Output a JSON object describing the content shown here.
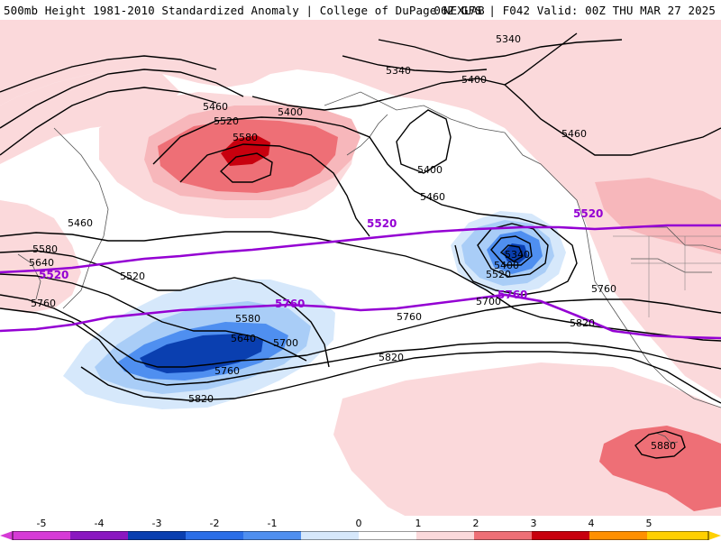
{
  "header": {
    "title": "500mb Height 1981-2010 Standardized Anomaly | College of DuPage NEXLAB",
    "run_info": "06Z GFS | F042 Valid: 00Z THU MAR 27 2025"
  },
  "colors": {
    "anom_neg5": "#d63ad6",
    "anom_neg4": "#8a17c0",
    "anom_neg3": "#0a3fb0",
    "anom_neg2": "#2b6ee8",
    "anom_neg1_strong": "#4f8ff0",
    "anom_neg1": "#a9cdf7",
    "anom_neg05": "#d6e8fb",
    "anom_pos05": "#fbd9db",
    "anom_pos1": "#f7b7bb",
    "anom_pos2": "#ee6f76",
    "anom_pos3": "#c8000e",
    "anom_pos4": "#ff9000",
    "anom_pos5": "#ffd000",
    "height_contour": "#000000",
    "thickness_contour": "#9400d3",
    "coastline": "#555555"
  },
  "contour_labels": {
    "c5340_a": "5340",
    "c5340_b": "5340",
    "c5400_a": "5400",
    "c5400_b": "5400",
    "c5400_c": "5400",
    "c5400_d": "5400",
    "c5460_a": "5460",
    "c5460_b": "5460",
    "c5460_c": "5460",
    "c5460_d": "5460",
    "c5520_a": "5520",
    "c5520_b": "5520",
    "c5520_c": "5520",
    "c5580_a": "5580",
    "c5580_b": "5580",
    "c5580_c": "5580",
    "c5640_a": "5640",
    "c5640_b": "5640",
    "c5700_a": "5700",
    "c5700_b": "5700",
    "c5760_a": "5760",
    "c5760_b": "5760",
    "c5760_c": "5760",
    "c5760_d": "5760",
    "c5820_a": "5820",
    "c5820_b": "5820",
    "c5820_c": "5820",
    "c5880_a": "5880",
    "c5340_low": "5340"
  },
  "thickness_labels": {
    "t5520_a": "5520",
    "t5520_b": "5520",
    "t5520_c": "5520",
    "t5760_a": "5760",
    "t5760_b": "5760"
  },
  "colorbar": {
    "ticks": [
      "-5",
      "-4",
      "-3",
      "-2",
      "-1",
      "0",
      "1",
      "2",
      "3",
      "4",
      "5"
    ]
  }
}
